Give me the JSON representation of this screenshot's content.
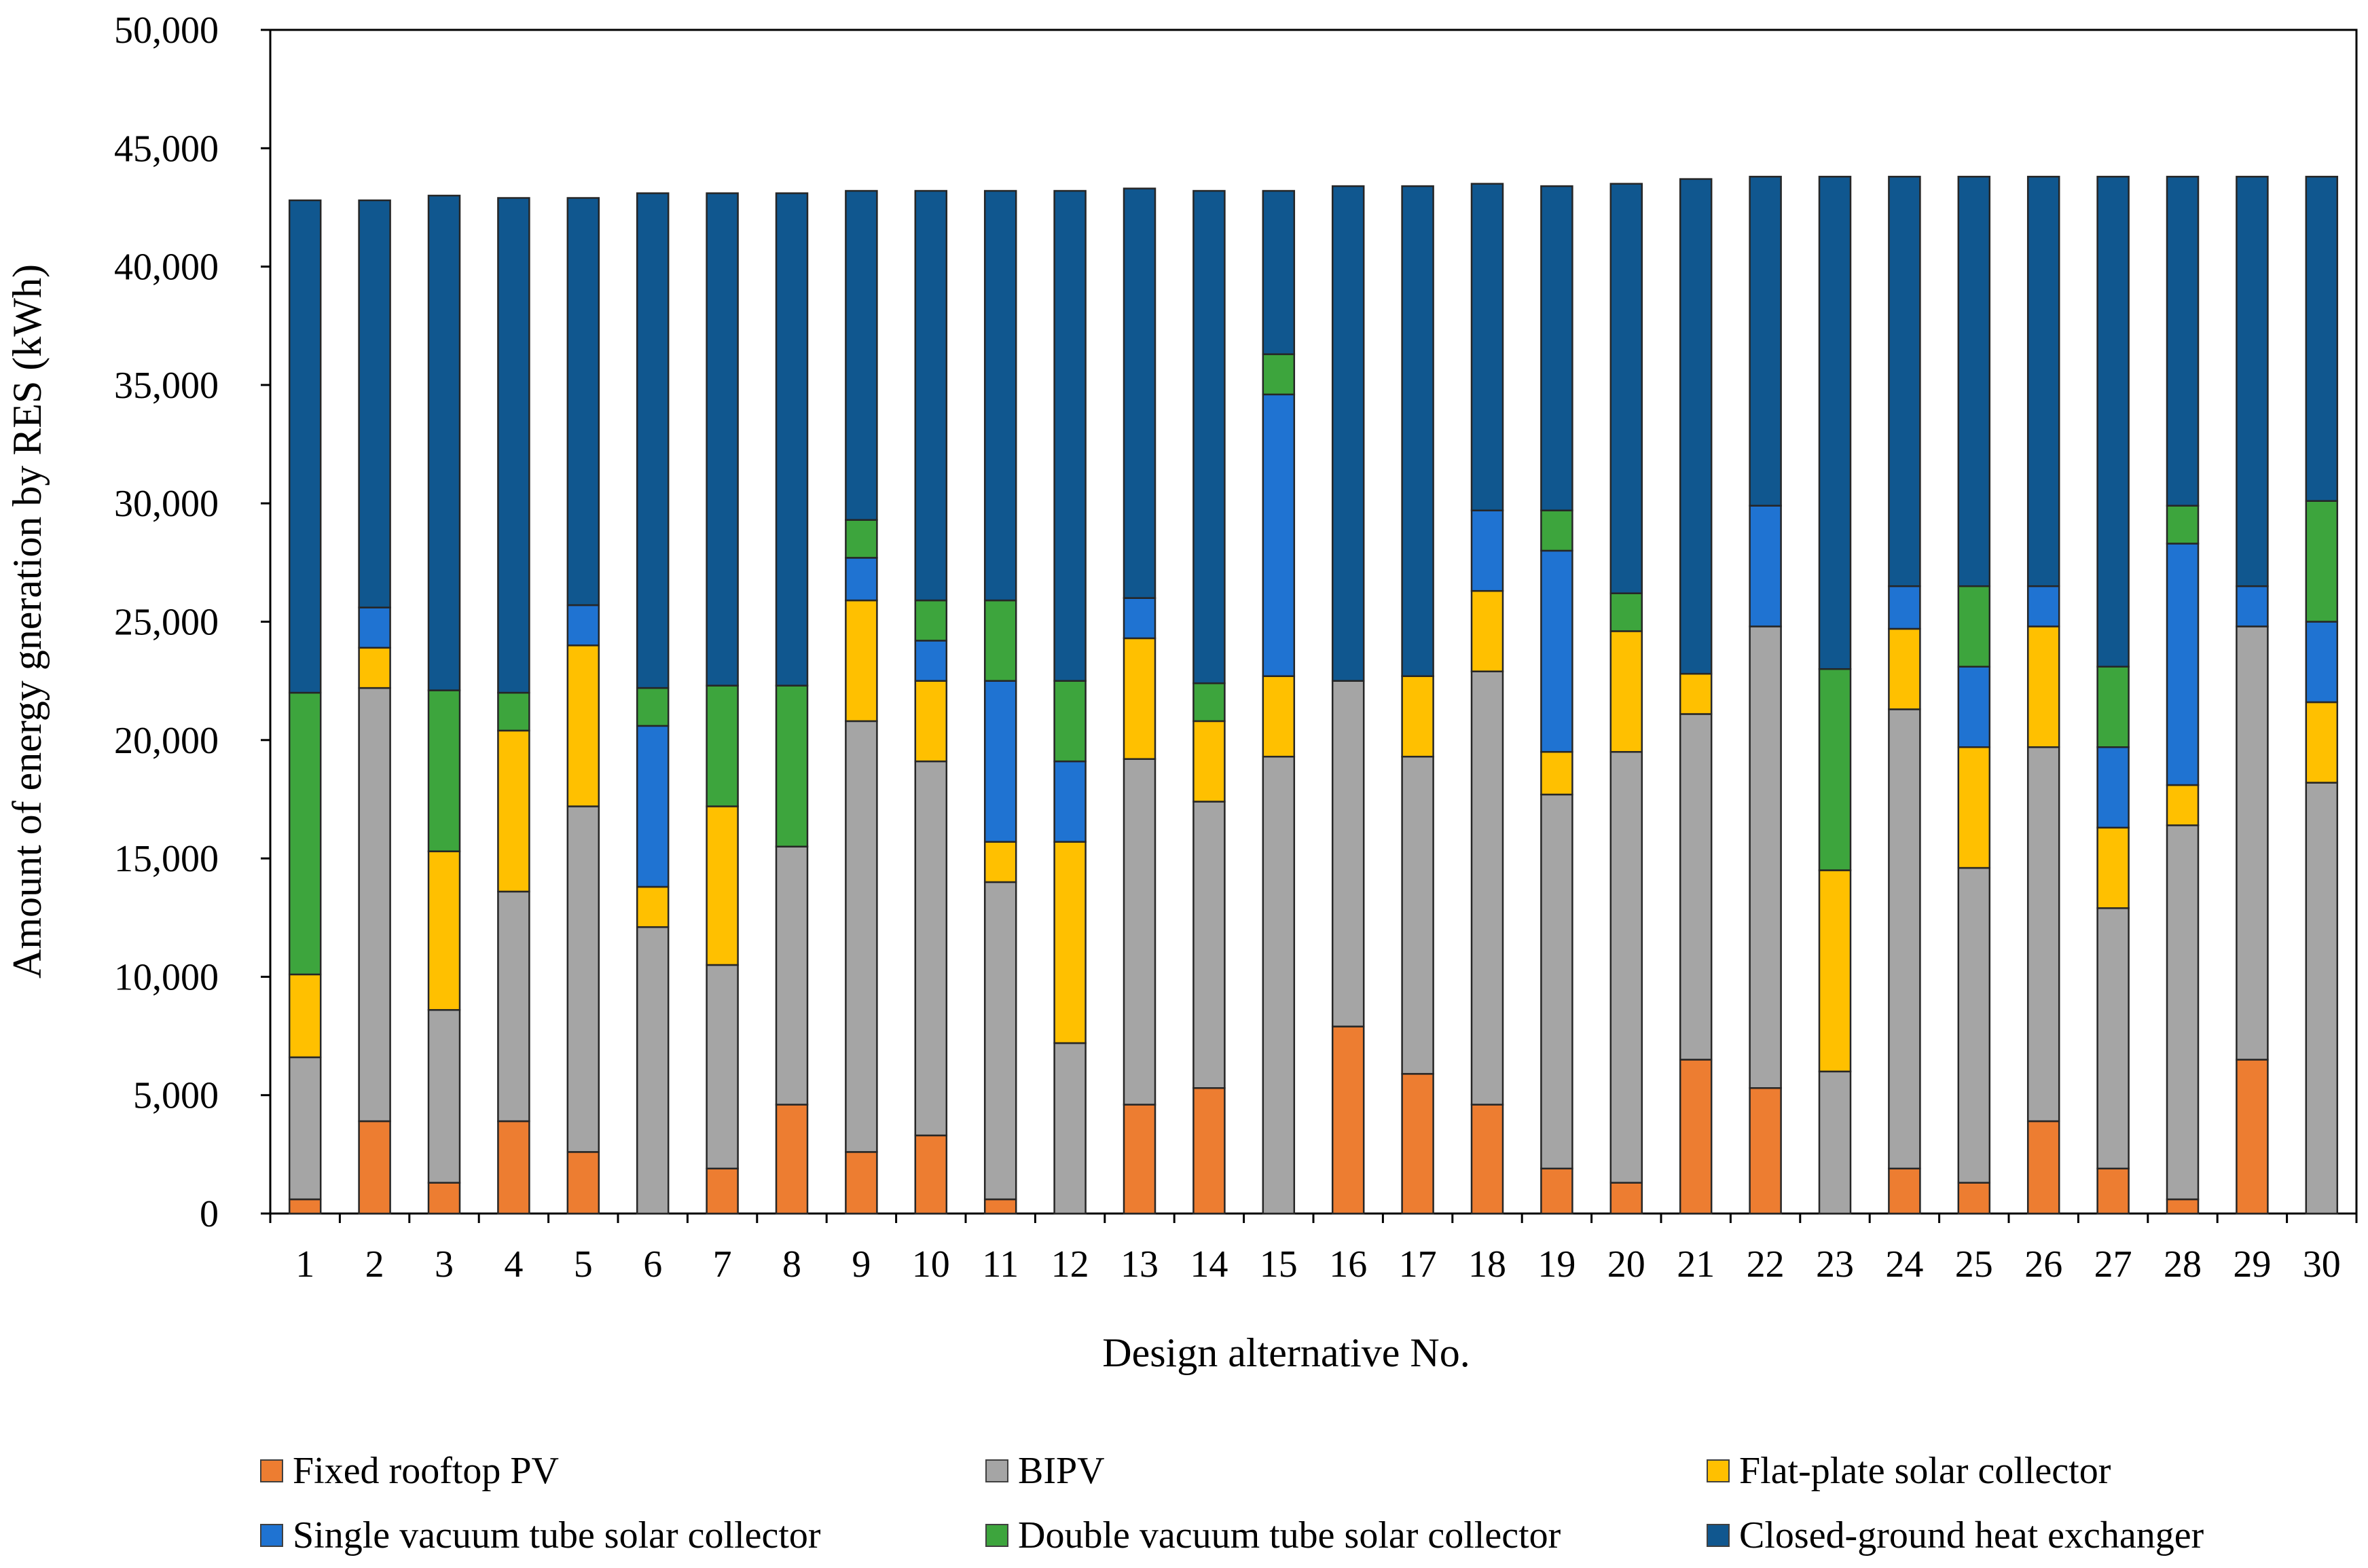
{
  "chart_data": {
    "type": "bar",
    "stacked": true,
    "title": "",
    "xlabel": "Design alternative No.",
    "ylabel": "Amount  of energy gneration by RES (kWh)",
    "ylim": [
      0,
      50000
    ],
    "yticks": [
      0,
      5000,
      10000,
      15000,
      20000,
      25000,
      30000,
      35000,
      40000,
      45000,
      50000
    ],
    "ytick_labels": [
      "0",
      "5,000",
      "10,000",
      "15,000",
      "20,000",
      "25,000",
      "30,000",
      "35,000",
      "40,000",
      "45,000",
      "50,000"
    ],
    "categories": [
      "1",
      "2",
      "3",
      "4",
      "5",
      "6",
      "7",
      "8",
      "9",
      "10",
      "11",
      "12",
      "13",
      "14",
      "15",
      "16",
      "17",
      "18",
      "19",
      "20",
      "21",
      "22",
      "23",
      "24",
      "25",
      "26",
      "27",
      "28",
      "29",
      "30"
    ],
    "legend_position": "bottom",
    "series": [
      {
        "name": "Fixed rooftop PV",
        "color": "#ED7D31",
        "values": [
          600,
          3900,
          1300,
          3900,
          2600,
          0,
          1900,
          4600,
          2600,
          3300,
          600,
          0,
          4600,
          5300,
          0,
          7900,
          5900,
          4600,
          1900,
          1300,
          6500,
          5300,
          0,
          1900,
          1300,
          3900,
          1900,
          600,
          6500,
          0
        ]
      },
      {
        "name": "BIPV",
        "color": "#A5A5A5",
        "values": [
          6000,
          18300,
          7300,
          9700,
          14600,
          12100,
          8600,
          10900,
          18200,
          15800,
          13400,
          7200,
          14600,
          12100,
          19300,
          14600,
          13400,
          18300,
          15800,
          18200,
          14600,
          19500,
          6000,
          19400,
          13300,
          15800,
          11000,
          15800,
          18300,
          18200
        ]
      },
      {
        "name": "Flat-plate solar collector",
        "color": "#FFC000",
        "values": [
          3500,
          1700,
          6700,
          6800,
          6800,
          1700,
          6700,
          0,
          5100,
          3400,
          1700,
          8500,
          5100,
          3400,
          3400,
          0,
          3400,
          3400,
          1800,
          5100,
          1700,
          0,
          8500,
          3400,
          5100,
          5100,
          3400,
          1700,
          0,
          3400
        ]
      },
      {
        "name": "Single vacuum tube solar collector",
        "color": "#1F73D2",
        "values": [
          0,
          1700,
          0,
          0,
          1700,
          6800,
          0,
          0,
          1800,
          1700,
          6800,
          3400,
          1700,
          0,
          11900,
          0,
          0,
          3400,
          8500,
          0,
          0,
          5100,
          0,
          1800,
          3400,
          1700,
          3400,
          10200,
          1700,
          3400
        ]
      },
      {
        "name": "Double vacuum tube solar collector",
        "color": "#3DA53D",
        "values": [
          11900,
          0,
          6800,
          1600,
          0,
          1600,
          5100,
          6800,
          1600,
          1700,
          3400,
          3400,
          0,
          1600,
          1700,
          0,
          0,
          0,
          1700,
          1600,
          0,
          0,
          8500,
          0,
          3400,
          0,
          3400,
          1600,
          0,
          5100
        ]
      },
      {
        "name": "Closed-ground heat exchanger",
        "color": "#10578F",
        "values": [
          20800,
          17200,
          20900,
          20900,
          17200,
          20900,
          20800,
          20800,
          13900,
          17300,
          17300,
          20700,
          17300,
          20800,
          6900,
          20900,
          20700,
          13800,
          13700,
          17300,
          20900,
          13900,
          20800,
          17300,
          17300,
          17300,
          20700,
          13900,
          17300,
          13700
        ]
      }
    ]
  }
}
